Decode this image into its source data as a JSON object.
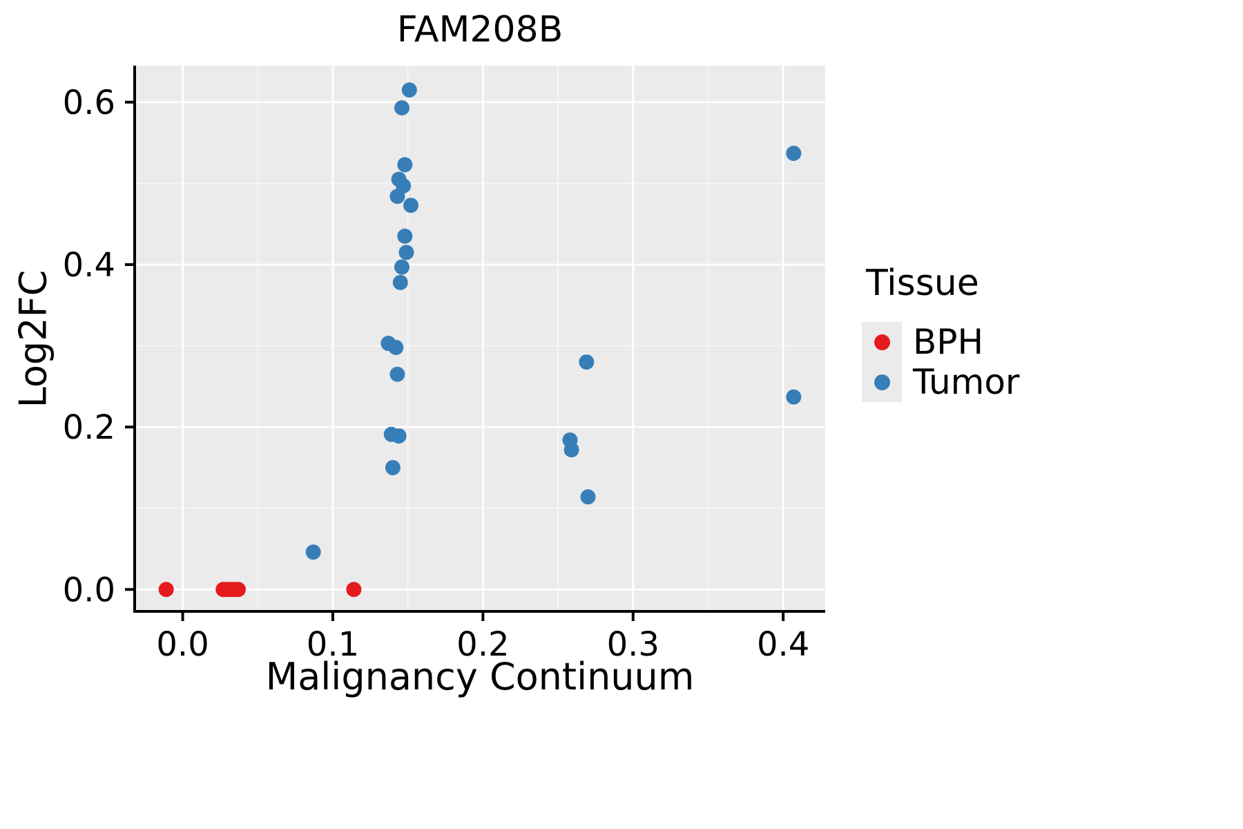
{
  "chart_data": {
    "type": "scatter",
    "title": "FAM208B",
    "xlabel": "Malignancy Continuum",
    "ylabel": "Log2FC",
    "xlim": [
      -0.032,
      0.428
    ],
    "ylim": [
      -0.027,
      0.645
    ],
    "panel_color": "#ebebeb",
    "grid_major_color": "#ffffff",
    "grid_minor_color": "#ffffff",
    "axis_color": "#000000",
    "x_ticks": [
      {
        "value": 0.0,
        "label": "0.0"
      },
      {
        "value": 0.1,
        "label": "0.1"
      },
      {
        "value": 0.2,
        "label": "0.2"
      },
      {
        "value": 0.3,
        "label": "0.3"
      },
      {
        "value": 0.4,
        "label": "0.4"
      }
    ],
    "y_ticks": [
      {
        "value": 0.0,
        "label": "0.0"
      },
      {
        "value": 0.2,
        "label": "0.2"
      },
      {
        "value": 0.4,
        "label": "0.4"
      },
      {
        "value": 0.6,
        "label": "0.6"
      }
    ],
    "x_minor_ticks": [
      0.05,
      0.15,
      0.25,
      0.35
    ],
    "y_minor_ticks": [
      0.1,
      0.3,
      0.5
    ],
    "legend": {
      "title": "Tissue",
      "position": "right"
    },
    "series": [
      {
        "name": "BPH",
        "color": "#e41a1c",
        "points": [
          [
            -0.011,
            0.0
          ],
          [
            0.027,
            0.0
          ],
          [
            0.029,
            0.0
          ],
          [
            0.031,
            0.0
          ],
          [
            0.033,
            0.0
          ],
          [
            0.035,
            0.0
          ],
          [
            0.037,
            0.0
          ],
          [
            0.114,
            0.0
          ]
        ]
      },
      {
        "name": "Tumor",
        "color": "#377eb8",
        "points": [
          [
            0.151,
            0.615
          ],
          [
            0.146,
            0.593
          ],
          [
            0.148,
            0.523
          ],
          [
            0.144,
            0.505
          ],
          [
            0.147,
            0.497
          ],
          [
            0.143,
            0.484
          ],
          [
            0.152,
            0.473
          ],
          [
            0.148,
            0.435
          ],
          [
            0.149,
            0.415
          ],
          [
            0.146,
            0.397
          ],
          [
            0.145,
            0.378
          ],
          [
            0.137,
            0.303
          ],
          [
            0.142,
            0.298
          ],
          [
            0.143,
            0.265
          ],
          [
            0.139,
            0.191
          ],
          [
            0.144,
            0.189
          ],
          [
            0.14,
            0.15
          ],
          [
            0.087,
            0.046
          ],
          [
            0.269,
            0.28
          ],
          [
            0.258,
            0.184
          ],
          [
            0.259,
            0.172
          ],
          [
            0.27,
            0.114
          ],
          [
            0.407,
            0.537
          ],
          [
            0.407,
            0.237
          ]
        ]
      }
    ]
  }
}
